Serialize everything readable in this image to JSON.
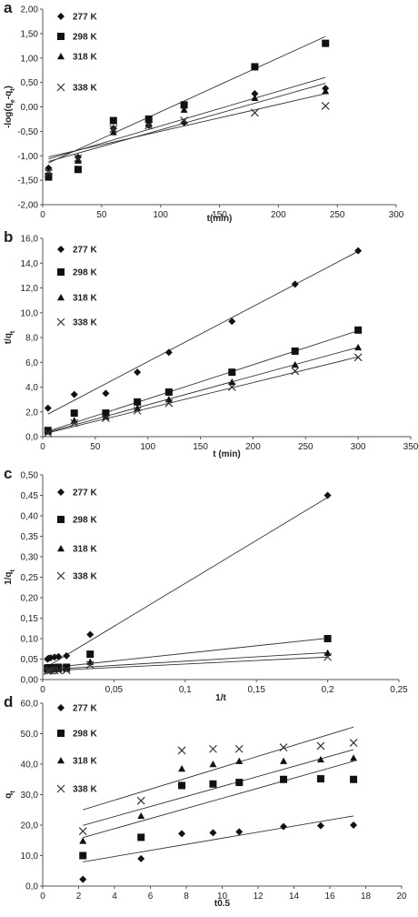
{
  "chart_data": [
    {
      "panel": "a",
      "type": "scatter",
      "xlabel": "t(min)",
      "ylabel_main": "-log(q",
      "ylabel_sub1": "e",
      "ylabel_mid": "-q",
      "ylabel_sub2": "t",
      "ylabel_end": ")",
      "xlim": [
        0,
        300
      ],
      "ylim": [
        -2,
        2
      ],
      "xticks": [
        0,
        50,
        100,
        150,
        200,
        250,
        300
      ],
      "yticks": [
        -2,
        -1.5,
        -1,
        -0.5,
        0,
        0.5,
        1,
        1.5,
        2
      ],
      "xtick_labels": [
        "0",
        "50",
        "100",
        "150",
        "200",
        "250",
        "300"
      ],
      "ytick_labels": [
        "-2,00",
        "-1,50",
        "-1,00",
        "-0,50",
        "0,00",
        "0,50",
        "1,00",
        "1,50",
        "2,00"
      ],
      "grid": false,
      "legend_placement": "top-left",
      "series": [
        {
          "name": "277 K",
          "marker": "diamond",
          "x": [
            5,
            30,
            60,
            90,
            120,
            180,
            240
          ],
          "y": [
            -1.25,
            -1.03,
            -0.44,
            -0.38,
            -0.32,
            0.27,
            0.38
          ],
          "fit": [
            -1.1,
            0.0071
          ]
        },
        {
          "name": "298 K",
          "marker": "square",
          "x": [
            5,
            30,
            60,
            90,
            120,
            180,
            240
          ],
          "y": [
            -1.42,
            -1.28,
            -0.28,
            -0.25,
            0.04,
            0.82,
            1.3
          ],
          "fit": [
            -1.2,
            0.011
          ]
        },
        {
          "name": "318 K",
          "marker": "triangle",
          "x": [
            5,
            30,
            60,
            90,
            120,
            180,
            240
          ],
          "y": [
            -1.45,
            -1.1,
            -0.52,
            -0.35,
            -0.06,
            0.18,
            0.32
          ],
          "fit": [
            -1.15,
            0.0068
          ]
        },
        {
          "name": "338 K",
          "marker": "cross",
          "x": [
            5,
            30,
            60,
            90,
            120,
            180,
            240
          ],
          "y": [
            -1.35,
            -1.05,
            -0.45,
            -0.38,
            -0.28,
            -0.12,
            0.02
          ],
          "fit": [
            -1.05,
            0.0055
          ]
        }
      ]
    },
    {
      "panel": "b",
      "type": "scatter",
      "xlabel": "t (min)",
      "ylabel_main": "t/q",
      "ylabel_sub1": "t",
      "ylabel_mid": "",
      "ylabel_sub2": "",
      "ylabel_end": "",
      "xlim": [
        0,
        350
      ],
      "ylim": [
        0,
        16
      ],
      "xticks": [
        0,
        50,
        100,
        150,
        200,
        250,
        300,
        350
      ],
      "yticks": [
        0,
        2,
        4,
        6,
        8,
        10,
        12,
        14,
        16
      ],
      "xtick_labels": [
        "0",
        "50",
        "100",
        "150",
        "200",
        "250",
        "300",
        "350"
      ],
      "ytick_labels": [
        "0,0",
        "2,0",
        "4,0",
        "6,0",
        "8,0",
        "10,0",
        "12,0",
        "14,0",
        "16,0"
      ],
      "grid": false,
      "legend_placement": "top-left",
      "series": [
        {
          "name": "277 K",
          "marker": "diamond",
          "x": [
            5,
            30,
            60,
            90,
            120,
            180,
            240,
            300
          ],
          "y": [
            2.3,
            3.4,
            3.5,
            5.2,
            6.8,
            9.3,
            12.3,
            15.0
          ],
          "fit": [
            1.6,
            0.0445
          ]
        },
        {
          "name": "298 K",
          "marker": "square",
          "x": [
            5,
            30,
            60,
            90,
            120,
            180,
            240,
            300
          ],
          "y": [
            0.5,
            1.9,
            1.9,
            2.8,
            3.6,
            5.2,
            6.9,
            8.6
          ],
          "fit": [
            0.3,
            0.0275
          ]
        },
        {
          "name": "318 K",
          "marker": "triangle",
          "x": [
            5,
            30,
            60,
            90,
            120,
            180,
            240,
            300
          ],
          "y": [
            0.4,
            1.3,
            1.6,
            2.3,
            3.0,
            4.4,
            5.8,
            7.2
          ],
          "fit": [
            0.25,
            0.0232
          ]
        },
        {
          "name": "338 K",
          "marker": "cross",
          "x": [
            5,
            30,
            60,
            90,
            120,
            180,
            240,
            300
          ],
          "y": [
            0.3,
            1.1,
            1.5,
            2.1,
            2.7,
            4.0,
            5.3,
            6.4
          ],
          "fit": [
            0.2,
            0.0208
          ]
        }
      ]
    },
    {
      "panel": "c",
      "type": "scatter",
      "xlabel": "1/t",
      "ylabel_main": "1/q",
      "ylabel_sub1": "t",
      "ylabel_mid": "",
      "ylabel_sub2": "",
      "ylabel_end": "",
      "xlim": [
        0,
        0.25
      ],
      "ylim": [
        0,
        0.5
      ],
      "xticks": [
        0,
        0.05,
        0.1,
        0.15,
        0.2,
        0.25
      ],
      "yticks": [
        0,
        0.05,
        0.1,
        0.15,
        0.2,
        0.25,
        0.3,
        0.35,
        0.4,
        0.45,
        0.5
      ],
      "xtick_labels": [
        "0",
        "0,05",
        "0,1",
        "0,15",
        "0,2",
        "0,25"
      ],
      "ytick_labels": [
        "0,00",
        "0,05",
        "0,10",
        "0,15",
        "0,20",
        "0,25",
        "0,30",
        "0,35",
        "0,40",
        "0,45",
        "0,50"
      ],
      "grid": false,
      "legend_placement": "top-left",
      "series": [
        {
          "name": "277 K",
          "marker": "diamond",
          "x": [
            0.0033,
            0.0042,
            0.0056,
            0.0083,
            0.0111,
            0.0167,
            0.0333,
            0.2
          ],
          "y": [
            0.05,
            0.052,
            0.053,
            0.055,
            0.056,
            0.058,
            0.11,
            0.45
          ],
          "fit": [
            0.025,
            2.1
          ]
        },
        {
          "name": "298 K",
          "marker": "square",
          "x": [
            0.0033,
            0.0042,
            0.0056,
            0.0083,
            0.0111,
            0.0167,
            0.0333,
            0.2
          ],
          "y": [
            0.028,
            0.029,
            0.029,
            0.029,
            0.03,
            0.03,
            0.062,
            0.1
          ],
          "fit": [
            0.027,
            0.37
          ]
        },
        {
          "name": "318 K",
          "marker": "triangle",
          "x": [
            0.0033,
            0.0042,
            0.0056,
            0.0083,
            0.0111,
            0.0167,
            0.0333,
            0.2
          ],
          "y": [
            0.024,
            0.024,
            0.024,
            0.025,
            0.025,
            0.026,
            0.043,
            0.065
          ],
          "fit": [
            0.024,
            0.21
          ]
        },
        {
          "name": "338 K",
          "marker": "cross",
          "x": [
            0.0033,
            0.0042,
            0.0056,
            0.0083,
            0.0111,
            0.0167,
            0.0333,
            0.2
          ],
          "y": [
            0.021,
            0.022,
            0.022,
            0.022,
            0.022,
            0.023,
            0.036,
            0.055
          ],
          "fit": [
            0.021,
            0.17
          ]
        }
      ]
    },
    {
      "panel": "d",
      "type": "scatter",
      "xlabel": "t0.5",
      "ylabel_main": "q",
      "ylabel_sub1": "t",
      "ylabel_mid": "",
      "ylabel_sub2": "",
      "ylabel_end": "",
      "xlim": [
        0,
        20
      ],
      "ylim": [
        0,
        60
      ],
      "xticks": [
        0,
        2,
        4,
        6,
        8,
        10,
        12,
        14,
        16,
        18,
        20
      ],
      "yticks": [
        0,
        10,
        20,
        30,
        40,
        50,
        60
      ],
      "xtick_labels": [
        "0",
        "2",
        "4",
        "6",
        "8",
        "10",
        "12",
        "14",
        "16",
        "18",
        "20"
      ],
      "ytick_labels": [
        "0,0",
        "10,0",
        "20,0",
        "30,0",
        "40,0",
        "50,0",
        "60,0"
      ],
      "grid": false,
      "legend_placement": "top-left",
      "series": [
        {
          "name": "277 K",
          "marker": "diamond",
          "x": [
            2.24,
            5.48,
            7.75,
            9.49,
            10.95,
            13.42,
            15.49,
            17.32
          ],
          "y": [
            2.2,
            9.0,
            17.2,
            17.5,
            17.8,
            19.5,
            19.8,
            20.0
          ],
          "fit": [
            5.7,
            1.0
          ]
        },
        {
          "name": "298 K",
          "marker": "square",
          "x": [
            2.24,
            5.48,
            7.75,
            9.49,
            10.95,
            13.42,
            15.49,
            17.32
          ],
          "y": [
            10.0,
            16.0,
            33.0,
            33.5,
            34.0,
            35.0,
            35.2,
            35.0
          ],
          "fit": [
            12.2,
            1.66
          ]
        },
        {
          "name": "318 K",
          "marker": "triangle",
          "x": [
            2.24,
            5.48,
            7.75,
            9.49,
            10.95,
            13.42,
            15.49,
            17.32
          ],
          "y": [
            14.8,
            23.0,
            38.5,
            40.0,
            41.0,
            41.0,
            41.5,
            42.0
          ],
          "fit": [
            16.2,
            1.65
          ]
        },
        {
          "name": "338 K",
          "marker": "cross",
          "x": [
            2.24,
            5.48,
            7.75,
            9.49,
            10.95,
            13.42,
            15.49,
            17.32
          ],
          "y": [
            18.0,
            28.0,
            44.5,
            45.0,
            45.0,
            45.5,
            46.0,
            47.0
          ],
          "fit": [
            21.0,
            1.8
          ]
        }
      ]
    }
  ]
}
